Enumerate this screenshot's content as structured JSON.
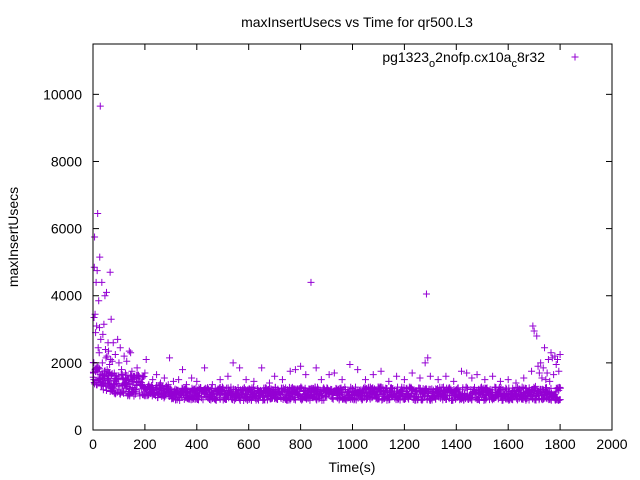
{
  "chart_data": {
    "type": "scatter",
    "title": "maxInsertUsecs vs Time for qr500.L3",
    "xlabel": "Time(s)",
    "ylabel": "maxInsertUsecs",
    "xlim": [
      0,
      2000
    ],
    "ylim": [
      0,
      11500
    ],
    "xticks": [
      0,
      200,
      400,
      600,
      800,
      1000,
      1200,
      1400,
      1600,
      1800,
      2000
    ],
    "yticks": [
      0,
      2000,
      4000,
      6000,
      8000,
      10000
    ],
    "grid": false,
    "legend_position": "top-right",
    "marker_color": "#9400d3",
    "series": [
      {
        "name": "pg1323_o2nofp.cx10a_c8r32",
        "legend_parts": [
          {
            "text": "pg1323",
            "shift": "normal"
          },
          {
            "text": "o",
            "shift": "sub"
          },
          {
            "text": "2nofp.cx10a",
            "shift": "normal"
          },
          {
            "text": "c",
            "shift": "sub"
          },
          {
            "text": "8r32",
            "shift": "normal"
          }
        ],
        "points": [
          [
            2,
            1700
          ],
          [
            4,
            3350
          ],
          [
            5,
            4850
          ],
          [
            6,
            5750
          ],
          [
            8,
            3450
          ],
          [
            10,
            2900
          ],
          [
            12,
            4400
          ],
          [
            14,
            3100
          ],
          [
            15,
            1800
          ],
          [
            16,
            4750
          ],
          [
            18,
            6450
          ],
          [
            20,
            2450
          ],
          [
            22,
            3850
          ],
          [
            24,
            2300
          ],
          [
            25,
            3050
          ],
          [
            26,
            5150
          ],
          [
            28,
            9650
          ],
          [
            30,
            2700
          ],
          [
            32,
            1350
          ],
          [
            34,
            4400
          ],
          [
            36,
            2000
          ],
          [
            38,
            2850
          ],
          [
            40,
            1200
          ],
          [
            42,
            3150
          ],
          [
            44,
            1750
          ],
          [
            46,
            4000
          ],
          [
            48,
            2400
          ],
          [
            50,
            2150
          ],
          [
            52,
            4100
          ],
          [
            54,
            2200
          ],
          [
            56,
            1500
          ],
          [
            58,
            2600
          ],
          [
            60,
            2350
          ],
          [
            62,
            1400
          ],
          [
            64,
            1950
          ],
          [
            66,
            4700
          ],
          [
            68,
            2100
          ],
          [
            70,
            3300
          ],
          [
            72,
            1650
          ],
          [
            74,
            2050
          ],
          [
            78,
            2600
          ],
          [
            82,
            1700
          ],
          [
            86,
            2250
          ],
          [
            90,
            1600
          ],
          [
            95,
            2700
          ],
          [
            100,
            2000
          ],
          [
            105,
            2450
          ],
          [
            110,
            1800
          ],
          [
            115,
            1550
          ],
          [
            120,
            2200
          ],
          [
            125,
            1700
          ],
          [
            130,
            2050
          ],
          [
            135,
            1500
          ],
          [
            140,
            2350
          ],
          [
            145,
            2300
          ],
          [
            150,
            1750
          ],
          [
            160,
            1600
          ],
          [
            170,
            1850
          ],
          [
            180,
            1450
          ],
          [
            190,
            1550
          ],
          [
            200,
            1700
          ],
          [
            205,
            2100
          ],
          [
            215,
            1350
          ],
          [
            230,
            1500
          ],
          [
            245,
            1650
          ],
          [
            260,
            1400
          ],
          [
            275,
            1550
          ],
          [
            290,
            1350
          ],
          [
            295,
            2150
          ],
          [
            310,
            1450
          ],
          [
            330,
            1500
          ],
          [
            345,
            1800
          ],
          [
            360,
            1350
          ],
          [
            380,
            1550
          ],
          [
            400,
            1450
          ],
          [
            430,
            1850
          ],
          [
            460,
            1350
          ],
          [
            490,
            1500
          ],
          [
            520,
            1600
          ],
          [
            540,
            2000
          ],
          [
            565,
            1850
          ],
          [
            590,
            1500
          ],
          [
            620,
            1450
          ],
          [
            650,
            1850
          ],
          [
            680,
            1400
          ],
          [
            700,
            1600
          ],
          [
            730,
            1500
          ],
          [
            760,
            1750
          ],
          [
            780,
            1800
          ],
          [
            800,
            1900
          ],
          [
            820,
            1650
          ],
          [
            840,
            4400
          ],
          [
            860,
            1850
          ],
          [
            880,
            1500
          ],
          [
            910,
            1650
          ],
          [
            930,
            1700
          ],
          [
            960,
            1500
          ],
          [
            990,
            1950
          ],
          [
            1020,
            1800
          ],
          [
            1050,
            1500
          ],
          [
            1080,
            1650
          ],
          [
            1110,
            1750
          ],
          [
            1140,
            1450
          ],
          [
            1170,
            1600
          ],
          [
            1200,
            1500
          ],
          [
            1230,
            1700
          ],
          [
            1260,
            1550
          ],
          [
            1280,
            2000
          ],
          [
            1285,
            4050
          ],
          [
            1290,
            2150
          ],
          [
            1300,
            1600
          ],
          [
            1330,
            1500
          ],
          [
            1360,
            1600
          ],
          [
            1390,
            1450
          ],
          [
            1420,
            1750
          ],
          [
            1440,
            1700
          ],
          [
            1460,
            1550
          ],
          [
            1480,
            1650
          ],
          [
            1510,
            1500
          ],
          [
            1540,
            1600
          ],
          [
            1570,
            1450
          ],
          [
            1600,
            1500
          ],
          [
            1630,
            1400
          ],
          [
            1660,
            1550
          ],
          [
            1690,
            1750
          ],
          [
            1695,
            3100
          ],
          [
            1700,
            2950
          ],
          [
            1705,
            1300
          ],
          [
            1710,
            2800
          ],
          [
            1715,
            1900
          ],
          [
            1720,
            1700
          ],
          [
            1725,
            2000
          ],
          [
            1730,
            1550
          ],
          [
            1735,
            1850
          ],
          [
            1740,
            2450
          ],
          [
            1745,
            1500
          ],
          [
            1750,
            1700
          ],
          [
            1755,
            2100
          ],
          [
            1760,
            1450
          ],
          [
            1765,
            2300
          ],
          [
            1770,
            2150
          ],
          [
            1775,
            1650
          ],
          [
            1780,
            2200
          ],
          [
            1785,
            1950
          ],
          [
            1790,
            2100
          ],
          [
            1795,
            1750
          ],
          [
            1800,
            2250
          ]
        ]
      }
    ]
  }
}
